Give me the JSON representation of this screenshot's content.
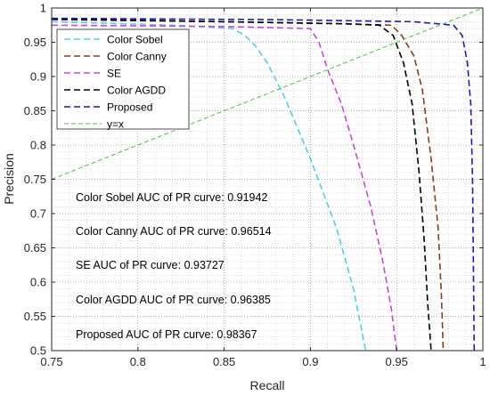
{
  "chart_data": {
    "type": "line",
    "title": "",
    "xlabel": "Recall",
    "ylabel": "Precision",
    "xlim": [
      0.75,
      1
    ],
    "ylim": [
      0.5,
      1
    ],
    "xticks": [
      0.75,
      0.8,
      0.85,
      0.9,
      0.95,
      1
    ],
    "yticks": [
      0.5,
      0.55,
      0.6,
      0.65,
      0.7,
      0.75,
      0.8,
      0.85,
      0.9,
      0.95,
      1
    ],
    "xtick_labels": [
      "0.75",
      "0.8",
      "0.85",
      "0.9",
      "0.95",
      "1"
    ],
    "ytick_labels": [
      "0.5",
      "0.55",
      "0.6",
      "0.65",
      "0.7",
      "0.75",
      "0.8",
      "0.85",
      "0.9",
      "0.95",
      "1"
    ],
    "grid": true,
    "legend_position": "top-left",
    "series": [
      {
        "name": "Color Sobel",
        "color": "#4fd0e8",
        "dash": "dashed",
        "x": [
          0.75,
          0.82,
          0.855,
          0.862,
          0.868,
          0.875,
          0.885,
          0.9,
          0.915,
          0.925,
          0.932
        ],
        "y": [
          0.98,
          0.975,
          0.97,
          0.96,
          0.945,
          0.92,
          0.87,
          0.78,
          0.68,
          0.59,
          0.5
        ]
      },
      {
        "name": "Color Canny",
        "color": "#8b3a1e",
        "dash": "dashed",
        "x": [
          0.75,
          0.85,
          0.92,
          0.947,
          0.953,
          0.96,
          0.965,
          0.97,
          0.974,
          0.976,
          0.977
        ],
        "y": [
          0.983,
          0.98,
          0.977,
          0.975,
          0.96,
          0.93,
          0.88,
          0.78,
          0.68,
          0.58,
          0.5
        ]
      },
      {
        "name": "SE",
        "color": "#c846d8",
        "dash": "dashed",
        "x": [
          0.75,
          0.85,
          0.9,
          0.905,
          0.91,
          0.918,
          0.925,
          0.935,
          0.942,
          0.947,
          0.95
        ],
        "y": [
          0.975,
          0.973,
          0.97,
          0.95,
          0.91,
          0.86,
          0.8,
          0.71,
          0.63,
          0.56,
          0.5
        ]
      },
      {
        "name": "Color AGDD",
        "color": "#000000",
        "dash": "dashed",
        "x": [
          0.75,
          0.85,
          0.92,
          0.94,
          0.948,
          0.954,
          0.959,
          0.963,
          0.966,
          0.968,
          0.97
        ],
        "y": [
          0.984,
          0.98,
          0.977,
          0.975,
          0.96,
          0.92,
          0.86,
          0.76,
          0.66,
          0.57,
          0.5
        ]
      },
      {
        "name": "Proposed",
        "color": "#1a1ab8",
        "dash": "dashed",
        "x": [
          0.75,
          0.88,
          0.96,
          0.983,
          0.988,
          0.991,
          0.993,
          0.994,
          0.9945,
          0.995
        ],
        "y": [
          0.985,
          0.983,
          0.98,
          0.975,
          0.96,
          0.92,
          0.86,
          0.75,
          0.62,
          0.5
        ]
      },
      {
        "name": "y=x",
        "color": "#4cbf4c",
        "dash": "dashed",
        "x": [
          0.75,
          1
        ],
        "y": [
          0.75,
          1
        ]
      }
    ],
    "annotations": [
      "Color Sobel AUC of PR curve: 0.91942",
      "Color Canny AUC of PR curve: 0.96514",
      "SE AUC of PR curve: 0.93727",
      "Color AGDD AUC of PR curve: 0.96385",
      "Proposed AUC of PR curve: 0.98367"
    ]
  }
}
